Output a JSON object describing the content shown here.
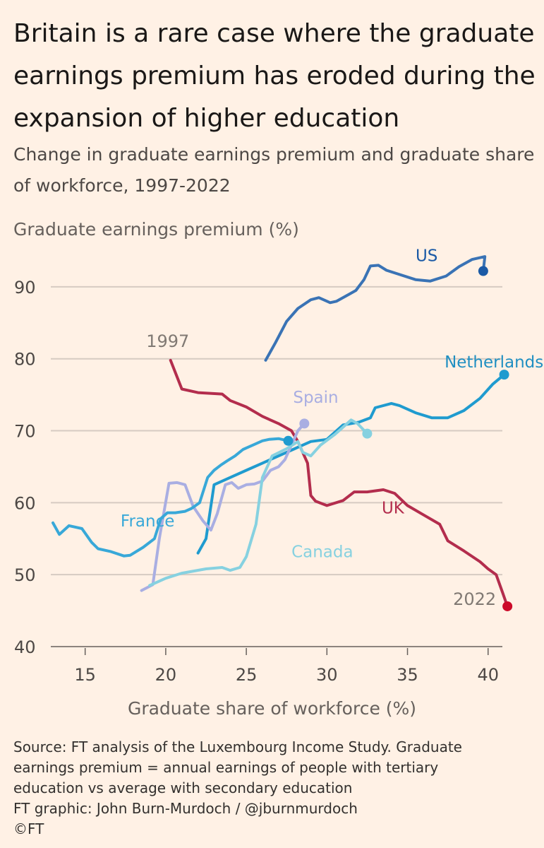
{
  "title": "Britain is a rare case where the graduate earnings premium has eroded during the expansion of higher education",
  "subtitle": "Change in graduate earnings premium and graduate share of workforce, 1997-2022",
  "source": {
    "line1": "Source: FT analysis of the Luxembourg Income Study. Graduate",
    "line2": "earnings premium = annual earnings of people with tertiary",
    "line3": "education vs average with secondary education",
    "line4": "FT graphic: John Burn-Murdoch / @jburnmurdoch",
    "line5": "©FT"
  },
  "chart_data": {
    "type": "line",
    "title": "Britain is a rare case where the graduate earnings premium has eroded during the expansion of higher education",
    "subtitle": "Change in graduate earnings premium and graduate share of workforce, 1997-2022",
    "xlabel": "Graduate share of workforce (%)",
    "ylabel": "Graduate earnings premium (%)",
    "xlim": [
      13,
      41.5
    ],
    "ylim": [
      40,
      95
    ],
    "xticks": [
      15,
      20,
      25,
      30,
      35,
      40
    ],
    "yticks": [
      40,
      50,
      60,
      70,
      80,
      90
    ],
    "grid": "horizontal",
    "legend": "direct labels",
    "annotations": [
      {
        "text": "1997",
        "x": 20.3,
        "y": 79.7
      },
      {
        "text": "2022",
        "x": 41.2,
        "y": 45.6
      }
    ],
    "series": [
      {
        "name": "US",
        "color": "#3a73b5",
        "end_color": "#1b5aa6",
        "x": [
          26.2,
          26.8,
          27.5,
          28.2,
          29.0,
          29.5,
          30.2,
          30.6,
          31.4,
          31.8,
          32.3,
          32.7,
          33.2,
          33.7,
          34.4,
          35.5,
          36.4,
          37.4,
          38.2,
          39.0,
          39.8,
          39.7
        ],
        "y": [
          79.8,
          82.2,
          85.2,
          87.0,
          88.2,
          88.5,
          87.8,
          88.0,
          89.0,
          89.5,
          91.0,
          92.9,
          93.0,
          92.3,
          91.8,
          91.0,
          90.8,
          91.5,
          92.8,
          93.8,
          94.2,
          92.2
        ]
      },
      {
        "name": "Netherlands",
        "color": "#1f9bcf",
        "end_color": "#1f9bcf",
        "x": [
          22.0,
          22.5,
          23.0,
          24.0,
          25.0,
          26.0,
          27.0,
          28.0,
          29.0,
          30.0,
          31.0,
          32.0,
          32.7,
          33.0,
          34.0,
          34.5,
          35.5,
          36.5,
          37.5,
          38.5,
          39.5,
          40.3,
          41.0
        ],
        "y": [
          53.0,
          55.0,
          62.5,
          63.5,
          64.5,
          65.5,
          66.5,
          67.5,
          68.5,
          68.8,
          70.8,
          71.2,
          71.8,
          73.2,
          73.8,
          73.5,
          72.5,
          71.8,
          71.8,
          72.8,
          74.5,
          76.5,
          77.8
        ]
      },
      {
        "name": "UK",
        "color": "#b32d4d",
        "end_color": "#cc0a29",
        "x": [
          20.3,
          21.0,
          22.0,
          23.5,
          24.0,
          25.0,
          26.0,
          27.0,
          27.8,
          28.2,
          28.8,
          29.0,
          29.3,
          30.0,
          31.0,
          31.7,
          32.5,
          33.5,
          34.2,
          35.0,
          36.0,
          37.0,
          37.5,
          38.5,
          39.5,
          40.0,
          40.5,
          40.9,
          41.2
        ],
        "y": [
          79.8,
          75.8,
          75.3,
          75.1,
          74.2,
          73.3,
          72.0,
          71.0,
          70.0,
          68.5,
          65.5,
          61.0,
          60.2,
          59.6,
          60.3,
          61.5,
          61.5,
          61.8,
          61.3,
          59.6,
          58.3,
          57.0,
          54.7,
          53.3,
          51.8,
          50.8,
          50.0,
          47.5,
          45.6
        ]
      },
      {
        "name": "Spain",
        "color": "#a9aee2",
        "end_color": "#a9aee2",
        "x": [
          18.5,
          19.2,
          19.6,
          20.2,
          20.7,
          21.2,
          21.7,
          22.3,
          22.8,
          23.2,
          23.7,
          24.1,
          24.5,
          25.0,
          25.5,
          26.0,
          26.5,
          27.0,
          27.4,
          27.8,
          28.2,
          28.6
        ],
        "y": [
          47.8,
          48.6,
          55.0,
          62.7,
          62.8,
          62.5,
          59.5,
          57.5,
          56.2,
          58.5,
          62.5,
          62.8,
          62.0,
          62.5,
          62.6,
          63.0,
          64.5,
          65.0,
          66.0,
          68.0,
          70.0,
          71.0
        ]
      },
      {
        "name": "Canada",
        "color": "#86d1e0",
        "end_color": "#86d1e0",
        "x": [
          19.0,
          20.0,
          21.0,
          22.5,
          23.5,
          24.0,
          24.6,
          25.0,
          25.6,
          26.0,
          26.6,
          27.5,
          28.2,
          28.5,
          29.0,
          29.6,
          30.5,
          31.0,
          31.5,
          31.9,
          32.5
        ],
        "y": [
          48.5,
          49.5,
          50.2,
          50.8,
          51.0,
          50.6,
          51.0,
          52.5,
          57.0,
          63.5,
          66.5,
          67.5,
          68.5,
          67.0,
          66.5,
          68.0,
          69.5,
          70.5,
          71.5,
          71.0,
          69.6
        ]
      },
      {
        "name": "France",
        "color": "#38a8d8",
        "end_color": "#1f9bcf",
        "x": [
          13.0,
          13.4,
          14.0,
          14.8,
          15.4,
          15.8,
          16.6,
          17.4,
          17.8,
          18.6,
          19.3,
          19.7,
          20.1,
          20.6,
          21.2,
          21.6,
          22.1,
          22.6,
          23.0,
          23.4,
          23.8,
          24.3,
          24.8,
          25.4,
          26.0,
          26.4,
          27.0,
          27.6
        ],
        "y": [
          57.2,
          55.6,
          56.8,
          56.4,
          54.5,
          53.6,
          53.2,
          52.6,
          52.7,
          53.8,
          55.0,
          57.8,
          58.6,
          58.6,
          58.8,
          59.2,
          60.0,
          63.5,
          64.5,
          65.2,
          65.8,
          66.5,
          67.4,
          68.0,
          68.6,
          68.8,
          68.9,
          68.6
        ]
      }
    ],
    "labels": [
      {
        "series": "US",
        "text": "US",
        "x": 35.5,
        "y": 93.6
      },
      {
        "series": "Netherlands",
        "text": "Netherlands",
        "x": 37.3,
        "y": 78.8
      },
      {
        "series": "Spain",
        "text": "Spain",
        "x": 27.9,
        "y": 73.9
      },
      {
        "series": "UK",
        "text": "UK",
        "x": 33.4,
        "y": 58.5
      },
      {
        "series": "France",
        "text": "France",
        "x": 17.2,
        "y": 56.7
      },
      {
        "series": "Canada",
        "text": "Canada",
        "x": 27.8,
        "y": 52.4
      }
    ]
  }
}
